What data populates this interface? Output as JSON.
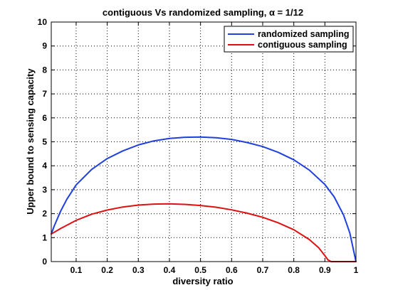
{
  "chart_data": {
    "type": "line",
    "title_main": "contiguous Vs randomized sampling, ",
    "title_alpha": "α = 1/12",
    "xlabel": "diversity ratio",
    "ylabel": "Upper bound to sensing capacity",
    "xlim": [
      0.02,
      1.0
    ],
    "ylim": [
      0,
      10
    ],
    "xticks": [
      0.1,
      0.2,
      0.3,
      0.4,
      0.5,
      0.6,
      0.7,
      0.8,
      0.9,
      1
    ],
    "xtick_labels": [
      "0.1",
      "0.2",
      "0.3",
      "0.4",
      "0.5",
      "0.6",
      "0.7",
      "0.8",
      "0.9",
      "1"
    ],
    "yticks": [
      0,
      1,
      2,
      3,
      4,
      5,
      6,
      7,
      8,
      9,
      10
    ],
    "ytick_labels": [
      "0",
      "1",
      "2",
      "3",
      "4",
      "5",
      "6",
      "7",
      "8",
      "9",
      "10"
    ],
    "grid": true,
    "legend_position": "top-right",
    "series": [
      {
        "name": "randomized sampling",
        "color": "#1f3fe0",
        "x": [
          0.02,
          0.03,
          0.05,
          0.07,
          0.1,
          0.15,
          0.2,
          0.25,
          0.3,
          0.35,
          0.4,
          0.45,
          0.5,
          0.55,
          0.6,
          0.65,
          0.7,
          0.75,
          0.8,
          0.85,
          0.9,
          0.93,
          0.96,
          0.98,
          1.0
        ],
        "y": [
          1.15,
          1.5,
          2.1,
          2.6,
          3.2,
          3.85,
          4.3,
          4.62,
          4.87,
          5.04,
          5.14,
          5.19,
          5.2,
          5.17,
          5.1,
          4.97,
          4.8,
          4.56,
          4.25,
          3.82,
          3.22,
          2.7,
          1.95,
          1.2,
          0.0
        ]
      },
      {
        "name": "contiguous sampling",
        "color": "#e01010",
        "x": [
          0.02,
          0.05,
          0.1,
          0.15,
          0.2,
          0.25,
          0.3,
          0.35,
          0.4,
          0.45,
          0.5,
          0.55,
          0.6,
          0.65,
          0.7,
          0.75,
          0.8,
          0.85,
          0.88,
          0.9,
          0.91,
          0.92,
          1.0
        ],
        "y": [
          1.15,
          1.38,
          1.72,
          1.98,
          2.15,
          2.28,
          2.36,
          2.4,
          2.41,
          2.39,
          2.34,
          2.27,
          2.16,
          2.02,
          1.85,
          1.62,
          1.33,
          0.92,
          0.58,
          0.25,
          0.07,
          0.0,
          0.0
        ]
      }
    ]
  }
}
